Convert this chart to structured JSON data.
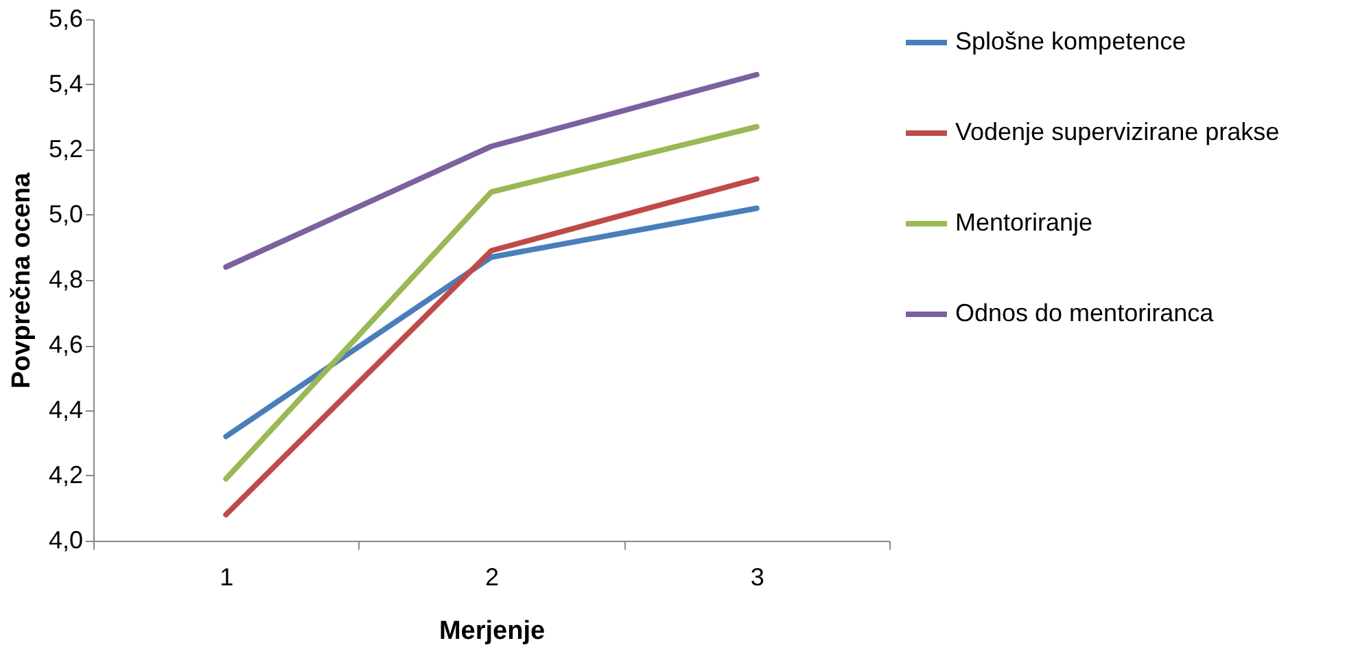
{
  "chart_data": {
    "type": "line",
    "xlabel": "Merjenje",
    "ylabel": "Povprečna ocena",
    "categories": [
      "1",
      "2",
      "3"
    ],
    "series": [
      {
        "name": "Splošne kompetence",
        "color": "#4a7ebb",
        "values": [
          4.32,
          4.87,
          5.02
        ]
      },
      {
        "name": "Vodenje supervizirane prakse",
        "color": "#be4b48",
        "values": [
          4.08,
          4.89,
          5.11
        ]
      },
      {
        "name": "Mentoriranje",
        "color": "#98b954",
        "values": [
          4.19,
          5.07,
          5.27
        ]
      },
      {
        "name": "Odnos do mentoriranca",
        "color": "#7d60a0",
        "values": [
          4.84,
          5.21,
          5.43
        ]
      }
    ],
    "ylim": [
      4.0,
      5.6
    ],
    "yticks": [
      {
        "value": 4.0,
        "label": "4,0"
      },
      {
        "value": 4.2,
        "label": "4,2"
      },
      {
        "value": 4.4,
        "label": "4,4"
      },
      {
        "value": 4.6,
        "label": "4,6"
      },
      {
        "value": 4.8,
        "label": "4,8"
      },
      {
        "value": 5.0,
        "label": "5,0"
      },
      {
        "value": 5.2,
        "label": "5,2"
      },
      {
        "value": 5.4,
        "label": "5,4"
      },
      {
        "value": 5.6,
        "label": "5,6"
      }
    ],
    "grid": false,
    "legend": "right",
    "marker": "none",
    "line_style": "solid"
  }
}
